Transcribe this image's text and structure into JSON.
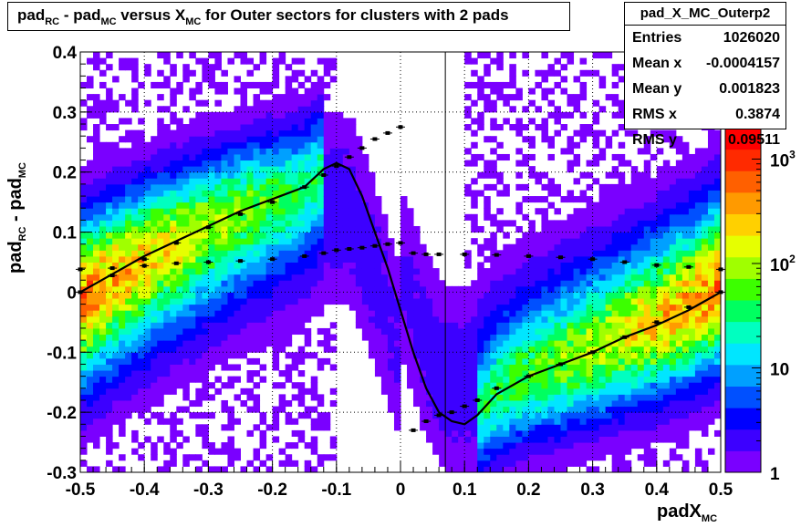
{
  "title": {
    "parts": [
      {
        "t": "pad"
      },
      {
        "t": "RC",
        "sub": true
      },
      {
        "t": " - pad"
      },
      {
        "t": "MC",
        "sub": true
      },
      {
        "t": " versus X"
      },
      {
        "t": "MC",
        "sub": true
      },
      {
        "t": " for Outer sectors for clusters with 2 pads"
      }
    ]
  },
  "stats": {
    "name": "pad_X_MC_Outerp2",
    "rows": [
      {
        "label": "Entries",
        "value": "1026020"
      },
      {
        "label": "Mean x",
        "value": "-0.0004157"
      },
      {
        "label": "Mean y",
        "value": "0.001823"
      },
      {
        "label": "RMS x",
        "value": "0.3874"
      },
      {
        "label": "RMS y",
        "value": "0.09511"
      }
    ]
  },
  "colors": {
    "palette": [
      "#7a00ff",
      "#3c00ff",
      "#0000ff",
      "#0050ff",
      "#00a0ff",
      "#00e6ff",
      "#00ffc0",
      "#00ff60",
      "#3cff00",
      "#a0ff00",
      "#e6ff00",
      "#ffd000",
      "#ff9a00",
      "#ff6000",
      "#ff2a00",
      "#ff0000"
    ]
  },
  "chart_data": {
    "type": "heatmap",
    "title": "pad_RC - pad_MC versus X_MC for Outer sectors for clusters with 2 pads",
    "xlabel": "padX_MC",
    "ylabel": "pad_RC - pad_MC",
    "xlim": [
      -0.5,
      0.5
    ],
    "ylim": [
      -0.3,
      0.4
    ],
    "x_ticks": [
      "-0.5",
      "-0.4",
      "-0.3",
      "-0.2",
      "-0.1",
      "0",
      "0.1",
      "0.2",
      "0.3",
      "0.4",
      "0.5"
    ],
    "y_ticks": [
      "-0.3",
      "-0.2",
      "-0.1",
      "0",
      "0.1",
      "0.2",
      "0.3",
      "0.4"
    ],
    "z_scale": "log",
    "z_ticks": [
      "1",
      "10",
      "10^2",
      "10^3"
    ],
    "zlim": [
      1,
      2000
    ],
    "grid": true,
    "vertical_line_x": 0.07,
    "fit_curve": {
      "x": [
        -0.5,
        -0.45,
        -0.4,
        -0.35,
        -0.3,
        -0.25,
        -0.2,
        -0.15,
        -0.12,
        -0.1,
        -0.08,
        -0.06,
        -0.04,
        -0.02,
        0,
        0.02,
        0.04,
        0.06,
        0.08,
        0.1,
        0.12,
        0.15,
        0.2,
        0.25,
        0.3,
        0.35,
        0.4,
        0.45,
        0.5
      ],
      "y": [
        0.0,
        0.03,
        0.06,
        0.085,
        0.11,
        0.135,
        0.155,
        0.175,
        0.205,
        0.215,
        0.205,
        0.16,
        0.1,
        0.04,
        -0.03,
        -0.1,
        -0.16,
        -0.2,
        -0.215,
        -0.22,
        -0.205,
        -0.17,
        -0.14,
        -0.12,
        -0.1,
        -0.075,
        -0.055,
        -0.03,
        0.0
      ]
    },
    "profile_upper": {
      "x": [
        -0.5,
        -0.45,
        -0.4,
        -0.35,
        -0.3,
        -0.25,
        -0.2,
        -0.15,
        -0.12,
        -0.1,
        -0.08,
        -0.06,
        -0.04,
        -0.02,
        0,
        0.02,
        0.04,
        0.06,
        0.1,
        0.15,
        0.2,
        0.25,
        0.3,
        0.35,
        0.4,
        0.45,
        0.5
      ],
      "y": [
        0.038,
        0.04,
        0.044,
        0.048,
        0.05,
        0.052,
        0.055,
        0.06,
        0.065,
        0.07,
        0.072,
        0.074,
        0.077,
        0.08,
        0.082,
        0.065,
        0.063,
        0.063,
        0.063,
        0.062,
        0.06,
        0.058,
        0.055,
        0.05,
        0.045,
        0.042,
        0.038
      ]
    },
    "profile_lower": {
      "x": [
        -0.5,
        -0.45,
        -0.4,
        -0.35,
        -0.3,
        -0.25,
        -0.2,
        -0.15,
        -0.12,
        -0.1,
        -0.08,
        -0.06,
        -0.04,
        -0.02,
        0,
        0.02,
        0.04,
        0.06,
        0.08,
        0.1,
        0.12,
        0.15,
        0.2,
        0.25,
        0.3,
        0.35,
        0.4,
        0.45,
        0.5
      ],
      "y": [
        0.0,
        0.028,
        0.055,
        0.082,
        0.108,
        0.13,
        0.15,
        0.175,
        0.195,
        0.21,
        0.225,
        0.24,
        0.255,
        0.265,
        0.275,
        -0.23,
        -0.215,
        -0.205,
        -0.2,
        -0.19,
        -0.18,
        -0.16,
        -0.14,
        -0.12,
        -0.1,
        -0.075,
        -0.05,
        -0.025,
        0.0
      ]
    }
  },
  "axis_titles": {
    "x": {
      "main": "padX",
      "sub": "MC"
    },
    "y": {
      "main1": "pad",
      "sub1": "RC",
      "mid": " - pad",
      "sub2": "MC"
    }
  }
}
